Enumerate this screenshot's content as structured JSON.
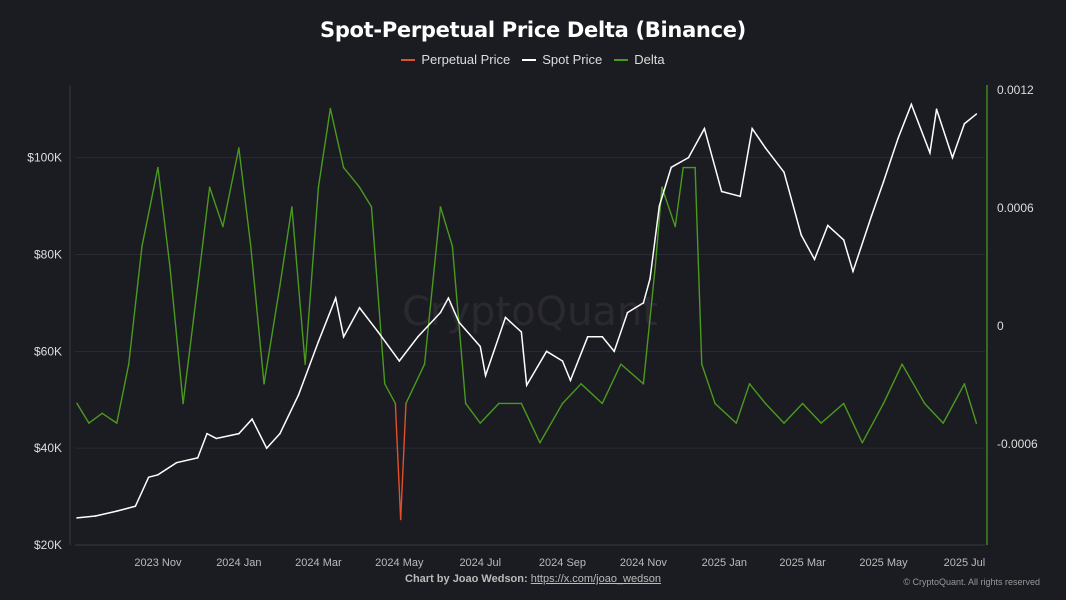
{
  "chart_data": {
    "type": "line",
    "title": "Spot-Perpetual Price Delta (Binance)",
    "watermark": "CryptoQuant",
    "legend_position": "top",
    "legend": [
      {
        "name": "Perpetual Price",
        "color": "#e0502a"
      },
      {
        "name": "Spot Price",
        "color": "#ffffff"
      },
      {
        "name": "Delta",
        "color": "#4a9a1e"
      }
    ],
    "x_range": [
      "2023-09-01",
      "2025-07-12"
    ],
    "x_ticks": [
      {
        "label": "2023 Nov",
        "date": "2023-11-01"
      },
      {
        "label": "2024 Jan",
        "date": "2024-01-01"
      },
      {
        "label": "2024 Mar",
        "date": "2024-03-01"
      },
      {
        "label": "2024 May",
        "date": "2024-05-01"
      },
      {
        "label": "2024 Jul",
        "date": "2024-07-01"
      },
      {
        "label": "2024 Sep",
        "date": "2024-09-01"
      },
      {
        "label": "2024 Nov",
        "date": "2024-11-01"
      },
      {
        "label": "2025 Jan",
        "date": "2025-01-01"
      },
      {
        "label": "2025 Mar",
        "date": "2025-03-01"
      },
      {
        "label": "2025 May",
        "date": "2025-05-01"
      },
      {
        "label": "2025 Jul",
        "date": "2025-07-01"
      }
    ],
    "y_left": {
      "ticks": [
        {
          "label": "$20K",
          "value": 20000
        },
        {
          "label": "$40K",
          "value": 40000
        },
        {
          "label": "$60K",
          "value": 60000
        },
        {
          "label": "$80K",
          "value": 80000
        },
        {
          "label": "$100K",
          "value": 100000
        }
      ],
      "range": [
        20000,
        115000
      ]
    },
    "y_right": {
      "ticks": [
        {
          "label": "0.0012",
          "value": 0.0012
        },
        {
          "label": "0.0006",
          "value": 0.0006
        },
        {
          "label": "0",
          "value": 0
        },
        {
          "label": "-0.0006",
          "value": -0.0006
        }
      ],
      "range": [
        -0.00112,
        0.00122
      ]
    },
    "grid": true,
    "series": [
      {
        "name": "Spot Price",
        "color": "#ffffff",
        "axis": "left",
        "points": [
          [
            "2023-09-01",
            25600
          ],
          [
            "2023-09-15",
            26000
          ],
          [
            "2023-10-01",
            27000
          ],
          [
            "2023-10-15",
            28000
          ],
          [
            "2023-10-25",
            34000
          ],
          [
            "2023-11-01",
            34500
          ],
          [
            "2023-11-15",
            37000
          ],
          [
            "2023-12-01",
            38000
          ],
          [
            "2023-12-08",
            43000
          ],
          [
            "2023-12-15",
            42000
          ],
          [
            "2024-01-01",
            43000
          ],
          [
            "2024-01-11",
            46000
          ],
          [
            "2024-01-22",
            40000
          ],
          [
            "2024-02-01",
            43000
          ],
          [
            "2024-02-15",
            51000
          ],
          [
            "2024-03-01",
            62000
          ],
          [
            "2024-03-14",
            71000
          ],
          [
            "2024-03-20",
            63000
          ],
          [
            "2024-04-01",
            69000
          ],
          [
            "2024-04-15",
            64000
          ],
          [
            "2024-05-01",
            58000
          ],
          [
            "2024-05-15",
            63000
          ],
          [
            "2024-06-01",
            68000
          ],
          [
            "2024-06-07",
            71000
          ],
          [
            "2024-06-15",
            66000
          ],
          [
            "2024-07-01",
            61000
          ],
          [
            "2024-07-05",
            55000
          ],
          [
            "2024-07-20",
            67000
          ],
          [
            "2024-08-01",
            64000
          ],
          [
            "2024-08-05",
            53000
          ],
          [
            "2024-08-20",
            60000
          ],
          [
            "2024-09-01",
            58000
          ],
          [
            "2024-09-07",
            54000
          ],
          [
            "2024-09-20",
            63000
          ],
          [
            "2024-10-01",
            63000
          ],
          [
            "2024-10-10",
            60000
          ],
          [
            "2024-10-20",
            68000
          ],
          [
            "2024-11-01",
            70000
          ],
          [
            "2024-11-06",
            75000
          ],
          [
            "2024-11-13",
            90000
          ],
          [
            "2024-11-22",
            98000
          ],
          [
            "2024-12-05",
            100000
          ],
          [
            "2024-12-17",
            106000
          ],
          [
            "2024-12-30",
            93000
          ],
          [
            "2025-01-13",
            92000
          ],
          [
            "2025-01-22",
            106000
          ],
          [
            "2025-02-01",
            102000
          ],
          [
            "2025-02-15",
            97000
          ],
          [
            "2025-02-28",
            84000
          ],
          [
            "2025-03-10",
            79000
          ],
          [
            "2025-03-20",
            86000
          ],
          [
            "2025-04-01",
            83000
          ],
          [
            "2025-04-08",
            76500
          ],
          [
            "2025-04-22",
            88000
          ],
          [
            "2025-05-01",
            95000
          ],
          [
            "2025-05-12",
            104000
          ],
          [
            "2025-05-22",
            111000
          ],
          [
            "2025-06-05",
            101000
          ],
          [
            "2025-06-10",
            110000
          ],
          [
            "2025-06-22",
            100000
          ],
          [
            "2025-07-01",
            107000
          ],
          [
            "2025-07-10",
            109000
          ]
        ]
      },
      {
        "name": "Delta",
        "color": "#4a9a1e",
        "spike_color": "#e0502a",
        "axis": "right",
        "points": [
          [
            "2023-09-01",
            -0.0004
          ],
          [
            "2023-09-10",
            -0.0005
          ],
          [
            "2023-09-20",
            -0.00045
          ],
          [
            "2023-10-01",
            -0.0005
          ],
          [
            "2023-10-10",
            -0.0002
          ],
          [
            "2023-10-20",
            0.0004
          ],
          [
            "2023-11-01",
            0.0008
          ],
          [
            "2023-11-10",
            0.0003
          ],
          [
            "2023-11-20",
            -0.0004
          ],
          [
            "2023-12-01",
            0.0002
          ],
          [
            "2023-12-10",
            0.0007
          ],
          [
            "2023-12-20",
            0.0005
          ],
          [
            "2024-01-01",
            0.0009
          ],
          [
            "2024-01-10",
            0.0004
          ],
          [
            "2024-01-20",
            -0.0003
          ],
          [
            "2024-02-01",
            0.0002
          ],
          [
            "2024-02-10",
            0.0006
          ],
          [
            "2024-02-20",
            -0.0002
          ],
          [
            "2024-03-01",
            0.0007
          ],
          [
            "2024-03-10",
            0.0011
          ],
          [
            "2024-03-20",
            0.0008
          ],
          [
            "2024-04-01",
            0.0007
          ],
          [
            "2024-04-10",
            0.0006
          ],
          [
            "2024-04-20",
            -0.0003
          ],
          [
            "2024-04-28",
            -0.0004
          ],
          [
            "2024-05-02",
            -0.00099
          ],
          [
            "2024-05-06",
            -0.0004
          ],
          [
            "2024-05-20",
            -0.0002
          ],
          [
            "2024-06-01",
            0.0006
          ],
          [
            "2024-06-10",
            0.0004
          ],
          [
            "2024-06-20",
            -0.0004
          ],
          [
            "2024-07-01",
            -0.0005
          ],
          [
            "2024-07-15",
            -0.0004
          ],
          [
            "2024-08-01",
            -0.0004
          ],
          [
            "2024-08-15",
            -0.0006
          ],
          [
            "2024-09-01",
            -0.0004
          ],
          [
            "2024-09-15",
            -0.0003
          ],
          [
            "2024-10-01",
            -0.0004
          ],
          [
            "2024-10-15",
            -0.0002
          ],
          [
            "2024-11-01",
            -0.0003
          ],
          [
            "2024-11-10",
            0.0003
          ],
          [
            "2024-11-15",
            0.0007
          ],
          [
            "2024-11-25",
            0.0005
          ],
          [
            "2024-12-01",
            0.0008
          ],
          [
            "2024-12-10",
            0.0008
          ],
          [
            "2024-12-15",
            -0.0002
          ],
          [
            "2024-12-25",
            -0.0004
          ],
          [
            "2025-01-10",
            -0.0005
          ],
          [
            "2025-01-20",
            -0.0003
          ],
          [
            "2025-02-01",
            -0.0004
          ],
          [
            "2025-02-15",
            -0.0005
          ],
          [
            "2025-03-01",
            -0.0004
          ],
          [
            "2025-03-15",
            -0.0005
          ],
          [
            "2025-04-01",
            -0.0004
          ],
          [
            "2025-04-15",
            -0.0006
          ],
          [
            "2025-05-01",
            -0.0004
          ],
          [
            "2025-05-15",
            -0.0002
          ],
          [
            "2025-06-01",
            -0.0004
          ],
          [
            "2025-06-15",
            -0.0005
          ],
          [
            "2025-07-01",
            -0.0003
          ],
          [
            "2025-07-10",
            -0.0005
          ]
        ]
      }
    ]
  },
  "footer": {
    "credit": "Chart by Joao Wedson:",
    "link": "https://x.com/joao_wedson",
    "copyright": "© CryptoQuant. All rights reserved"
  }
}
